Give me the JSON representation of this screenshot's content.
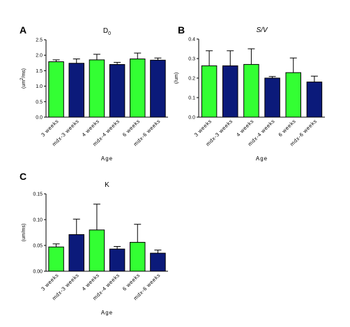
{
  "chart_data": [
    {
      "panel": "A",
      "type": "bar",
      "title": "D0",
      "title_main": "D",
      "title_sub": "0",
      "xlabel": "Age",
      "ylabel": "(um2/ms)",
      "ylabel_parts": [
        "(um",
        "2",
        "/ms)"
      ],
      "categories": [
        "3 weeks",
        "mdx-3 weeks",
        "4 weeks",
        "mdx-4 weeks",
        "6 weeks",
        "mdx-6 weeks"
      ],
      "values": [
        1.79,
        1.74,
        1.85,
        1.7,
        1.88,
        1.84
      ],
      "errors": [
        0.06,
        0.14,
        0.18,
        0.07,
        0.19,
        0.07
      ],
      "colors": [
        "#33ff33",
        "#0b1a7a",
        "#33ff33",
        "#0b1a7a",
        "#33ff33",
        "#0b1a7a"
      ],
      "ylim": [
        0,
        2.5
      ],
      "yticks": [
        "0.0",
        "0.5",
        "1.0",
        "1.5",
        "2.0",
        "2.5"
      ],
      "grid": false
    },
    {
      "panel": "B",
      "type": "bar",
      "title": "S/V",
      "xlabel": "Age",
      "ylabel": "(/um)",
      "categories": [
        "3 weeks",
        "mdx-3 weeks",
        "4 weeks",
        "mdx-4 weeks",
        "6 weeks",
        "mdx-6 weeks"
      ],
      "values": [
        0.263,
        0.263,
        0.27,
        0.2,
        0.228,
        0.18
      ],
      "errors": [
        0.077,
        0.077,
        0.08,
        0.008,
        0.075,
        0.03
      ],
      "colors": [
        "#33ff33",
        "#0b1a7a",
        "#33ff33",
        "#0b1a7a",
        "#33ff33",
        "#0b1a7a"
      ],
      "ylim": [
        0,
        0.4
      ],
      "yticks": [
        "0.0",
        "0.1",
        "0.2",
        "0.3",
        "0.4"
      ],
      "grid": false
    },
    {
      "panel": "C",
      "type": "bar",
      "title": "K",
      "xlabel": "Age",
      "ylabel": "(um/ms)",
      "categories": [
        "3 weeks",
        "mdx-3 weeks",
        "4 weeks",
        "mdx-4 weeks",
        "6 weeks",
        "mdx-6 weeks"
      ],
      "values": [
        0.047,
        0.071,
        0.08,
        0.043,
        0.056,
        0.035
      ],
      "errors": [
        0.006,
        0.03,
        0.05,
        0.005,
        0.035,
        0.006
      ],
      "colors": [
        "#33ff33",
        "#0b1a7a",
        "#33ff33",
        "#0b1a7a",
        "#33ff33",
        "#0b1a7a"
      ],
      "ylim": [
        0,
        0.15
      ],
      "yticks": [
        "0.00",
        "0.05",
        "0.10",
        "0.15"
      ],
      "grid": false
    }
  ]
}
